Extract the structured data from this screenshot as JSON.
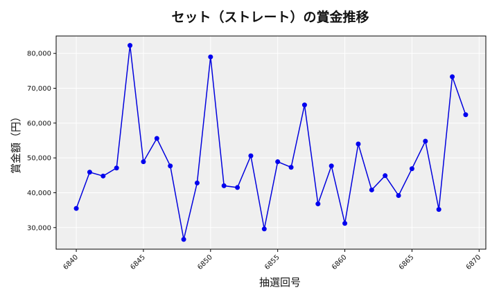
{
  "chart_data": {
    "type": "line",
    "title": "セット（ストレート）の賞金推移",
    "xlabel": "抽選回号",
    "ylabel": "賞金額（円）",
    "x": [
      6840,
      6841,
      6842,
      6843,
      6844,
      6845,
      6846,
      6847,
      6848,
      6849,
      6850,
      6851,
      6852,
      6853,
      6854,
      6855,
      6856,
      6857,
      6858,
      6859,
      6860,
      6861,
      6862,
      6863,
      6864,
      6865,
      6866,
      6867,
      6868,
      6869
    ],
    "values": [
      35500,
      45900,
      44800,
      47100,
      82300,
      48900,
      55600,
      47700,
      26600,
      42800,
      79000,
      42000,
      41500,
      50600,
      29600,
      48900,
      47300,
      65200,
      36800,
      47700,
      31200,
      54000,
      40800,
      44900,
      39200,
      46900,
      54800,
      35200,
      73300,
      62400
    ],
    "xlim": [
      6838.5,
      6870.5
    ],
    "ylim": [
      23800,
      85000
    ],
    "xticks": [
      6840,
      6845,
      6850,
      6855,
      6860,
      6865,
      6870
    ],
    "xtick_labels": [
      "6840",
      "6845",
      "6850",
      "6855",
      "6860",
      "6865",
      "6870"
    ],
    "yticks": [
      30000,
      40000,
      50000,
      60000,
      70000,
      80000
    ],
    "ytick_labels": [
      "30,000",
      "40,000",
      "50,000",
      "60,000",
      "70,000",
      "80,000"
    ],
    "grid": true,
    "line_color": "#0000dd",
    "marker_color": "#0000ee",
    "background_color": "#efefef"
  }
}
